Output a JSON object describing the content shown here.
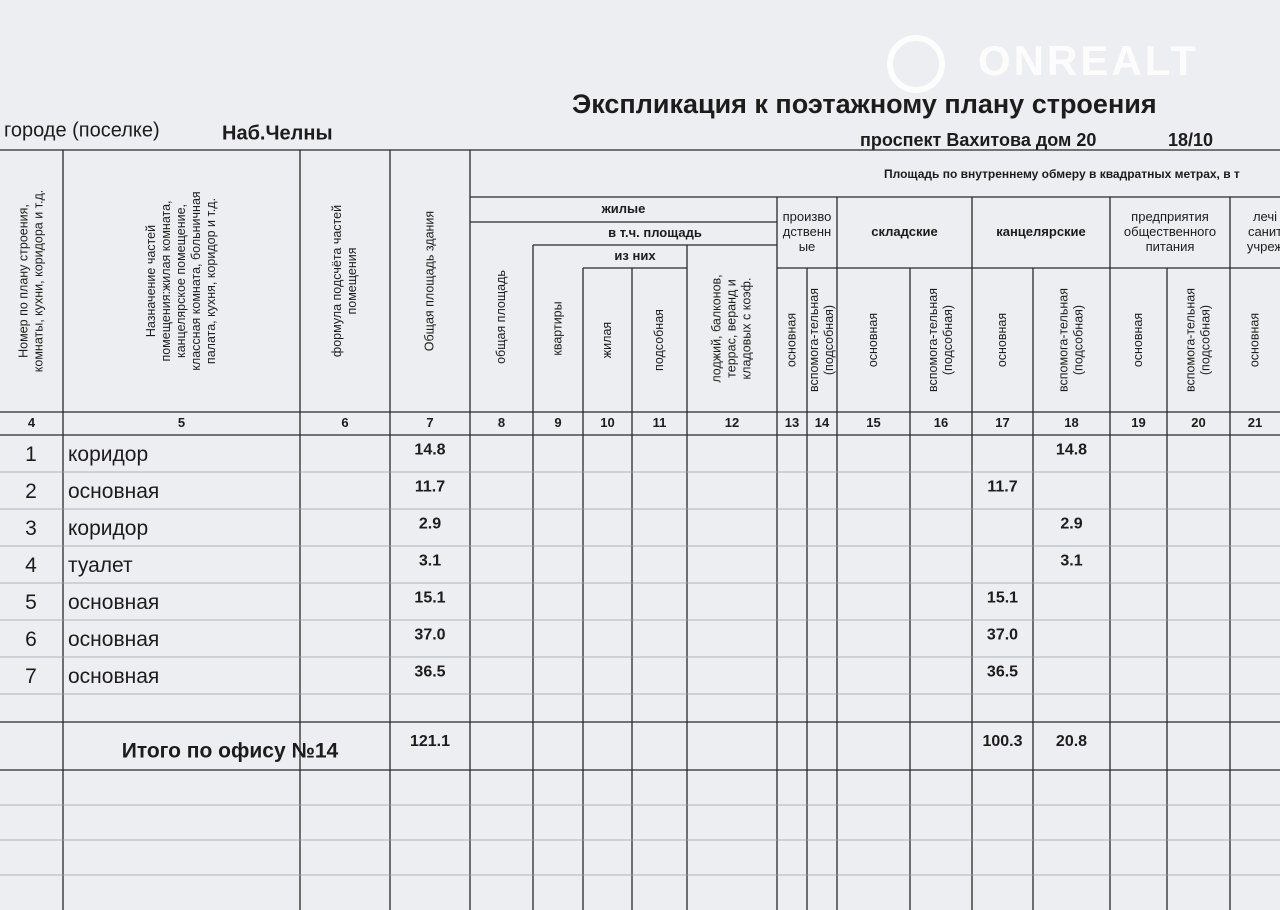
{
  "watermark": "ONREALT",
  "title": "Экспликация к поэтажному плану строения",
  "location": {
    "label": "городе (поселке)",
    "city": "Наб.Челны",
    "address": "проспект Вахитова дом 20",
    "code": "18/10"
  },
  "table": {
    "area_header": "Площадь по внутреннему обмеру в квадратных метрах, в т",
    "groups": [
      {
        "lines": [
          "жилые"
        ]
      },
      {
        "lines": [
          "в т.ч. площадь"
        ]
      },
      {
        "lines": [
          "из них"
        ]
      },
      {
        "lines": [
          "произво",
          "дственн",
          "ые"
        ]
      },
      {
        "lines": [
          "складские"
        ]
      },
      {
        "lines": [
          "канцелярские"
        ]
      },
      {
        "lines": [
          "предприятия",
          "общественного",
          "питания"
        ]
      },
      {
        "lines": [
          "лечі",
          "санит",
          "учреж"
        ]
      }
    ],
    "columns": [
      {
        "number": "4",
        "header": [
          "Номер по плану строения,",
          "комнаты, кухни, коридора и т.д."
        ]
      },
      {
        "number": "5",
        "header": [
          "Назначение частей",
          "помещения:жилая комната,",
          "канцелярское помещение,",
          "классная комната, больничная",
          "палата, кухня, коридор и т.д."
        ]
      },
      {
        "number": "6",
        "header": [
          "формула подсчёта частей",
          "помещения"
        ]
      },
      {
        "number": "7",
        "header": [
          "Общая площадь здания"
        ]
      },
      {
        "number": "8",
        "header": [
          "общая площадь"
        ]
      },
      {
        "number": "9",
        "header": [
          "квартиры"
        ]
      },
      {
        "number": "10",
        "header": [
          "жилая"
        ]
      },
      {
        "number": "11",
        "header": [
          "подсобная"
        ]
      },
      {
        "number": "12",
        "header": [
          "лоджий, балконов,",
          "террас, веранд и",
          "кладовых с коэф."
        ]
      },
      {
        "number": "13",
        "header": [
          "основная"
        ]
      },
      {
        "number": "14",
        "header": [
          "вспомога-тельная",
          "(подсобная)"
        ]
      },
      {
        "number": "15",
        "header": [
          "основная"
        ]
      },
      {
        "number": "16",
        "header": [
          "вспомога-тельная",
          "(подсобная)"
        ]
      },
      {
        "number": "17",
        "header": [
          "основная"
        ]
      },
      {
        "number": "18",
        "header": [
          "вспомога-тельная",
          "(подсобная)"
        ]
      },
      {
        "number": "19",
        "header": [
          "основная"
        ]
      },
      {
        "number": "20",
        "header": [
          "вспомога-тельная",
          "(подсобная)"
        ]
      },
      {
        "number": "21",
        "header": [
          "основная"
        ]
      }
    ],
    "rows": [
      {
        "number": "1",
        "name": "коридор",
        "cells": {
          "7": "14.8",
          "18": "14.8"
        }
      },
      {
        "number": "2",
        "name": "основная",
        "cells": {
          "7": "11.7",
          "17": "11.7"
        }
      },
      {
        "number": "3",
        "name": "коридор",
        "cells": {
          "7": "2.9",
          "18": "2.9"
        }
      },
      {
        "number": "4",
        "name": "туалет",
        "cells": {
          "7": "3.1",
          "18": "3.1"
        }
      },
      {
        "number": "5",
        "name": "основная",
        "cells": {
          "7": "15.1",
          "17": "15.1"
        }
      },
      {
        "number": "6",
        "name": "основная",
        "cells": {
          "7": "37.0",
          "17": "37.0"
        }
      },
      {
        "number": "7",
        "name": "основная",
        "cells": {
          "7": "36.5",
          "17": "36.5"
        }
      }
    ],
    "total": {
      "label": "Итого по офису №14",
      "cells": {
        "7": "121.1",
        "17": "100.3",
        "18": "20.8"
      }
    }
  }
}
